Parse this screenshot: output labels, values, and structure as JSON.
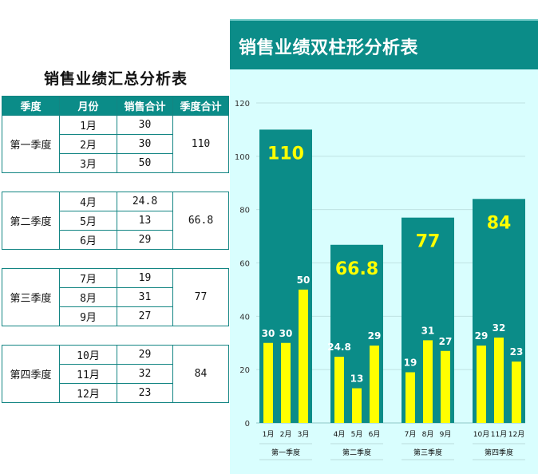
{
  "summary_table": {
    "title": "销售业绩汇总分析表",
    "headers": [
      "季度",
      "月份",
      "销售合计",
      "季度合计"
    ],
    "quarters": [
      {
        "name": "第一季度",
        "total": "110",
        "rows": [
          {
            "month": "1月",
            "sales": "30"
          },
          {
            "month": "2月",
            "sales": "30"
          },
          {
            "month": "3月",
            "sales": "50"
          }
        ]
      },
      {
        "name": "第二季度",
        "total": "66.8",
        "rows": [
          {
            "month": "4月",
            "sales": "24.8"
          },
          {
            "month": "5月",
            "sales": "13"
          },
          {
            "month": "6月",
            "sales": "29"
          }
        ]
      },
      {
        "name": "第三季度",
        "total": "77",
        "rows": [
          {
            "month": "7月",
            "sales": "19"
          },
          {
            "month": "8月",
            "sales": "31"
          },
          {
            "month": "9月",
            "sales": "27"
          }
        ]
      },
      {
        "name": "第四季度",
        "total": "84",
        "rows": [
          {
            "month": "10月",
            "sales": "29"
          },
          {
            "month": "11月",
            "sales": "32"
          },
          {
            "month": "12月",
            "sales": "23"
          }
        ]
      }
    ]
  },
  "colors": {
    "teal": "#0b8c88",
    "yellow": "#ffff00",
    "panel_bg": "#d9fefe",
    "grid": "#bfe3e3"
  },
  "chart_data": {
    "type": "bar",
    "title": "销售业绩双柱形分析表",
    "categories": [
      "第一季度",
      "第二季度",
      "第三季度",
      "第四季度"
    ],
    "months": [
      [
        "1月",
        "2月",
        "3月"
      ],
      [
        "4月",
        "5月",
        "6月"
      ],
      [
        "7月",
        "8月",
        "9月"
      ],
      [
        "10月",
        "11月",
        "12月"
      ]
    ],
    "series": [
      {
        "values": [
          110,
          66.8,
          77,
          84
        ]
      },
      {
        "values": [
          [
            30,
            30,
            50
          ],
          [
            24.8,
            13,
            29
          ],
          [
            19,
            31,
            27
          ],
          [
            29,
            32,
            23
          ]
        ]
      }
    ],
    "yticks": [
      0,
      20,
      40,
      60,
      80,
      100,
      120
    ],
    "ylim": [
      0,
      120
    ],
    "grid": true,
    "legend": "none"
  }
}
